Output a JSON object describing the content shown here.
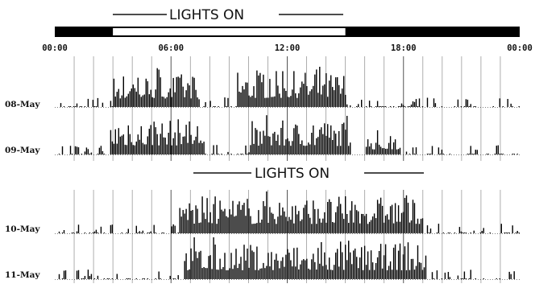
{
  "chart_data": {
    "type": "bar",
    "title": "",
    "xlabel": "",
    "ylabel": "",
    "x_tick_labels": [
      "00:00",
      "06:00",
      "12:00",
      "18:00",
      "00:00"
    ],
    "x_range_hours": [
      0,
      24
    ],
    "light_phases": [
      {
        "label": "LIGHTS ON",
        "start_hour": 3,
        "end_hour": 15,
        "period": "08-May and 09-May"
      },
      {
        "label": "LIGHTS ON",
        "start_hour": 6,
        "end_hour": 18,
        "period": "10-May and 11-May"
      }
    ],
    "light_bar": {
      "dark_color": "#000000",
      "light_color": "#ffffff"
    },
    "series": [
      {
        "name": "08-May",
        "active_from_hour": 3.0,
        "active_to_hour": 15.0,
        "activity_blocks": [
          [
            3.0,
            7.3,
            0.85
          ],
          [
            9.4,
            15.0,
            0.9
          ]
        ]
      },
      {
        "name": "09-May",
        "active_from_hour": 2.8,
        "active_to_hour": 15.3,
        "activity_blocks": [
          [
            2.8,
            7.7,
            0.9
          ],
          [
            10.0,
            15.3,
            0.85
          ],
          [
            16.0,
            17.8,
            0.5
          ]
        ]
      },
      {
        "name": "10-May",
        "active_from_hour": 6.4,
        "active_to_hour": 19.0,
        "activity_blocks": [
          [
            6.4,
            19.0,
            0.9
          ]
        ]
      },
      {
        "name": "11-May",
        "active_from_hour": 6.6,
        "active_to_hour": 19.2,
        "activity_blocks": [
          [
            6.6,
            19.2,
            0.85
          ]
        ]
      }
    ],
    "grid_hours": [
      1,
      2,
      3,
      4,
      5,
      6,
      7,
      8,
      9,
      10,
      11,
      12,
      13,
      14,
      15,
      16,
      17,
      18,
      19,
      20,
      21,
      22,
      23
    ],
    "grid": true,
    "colors": {
      "activity": "#000000",
      "grid": "#9a9a9a",
      "axis": "#000000"
    }
  }
}
